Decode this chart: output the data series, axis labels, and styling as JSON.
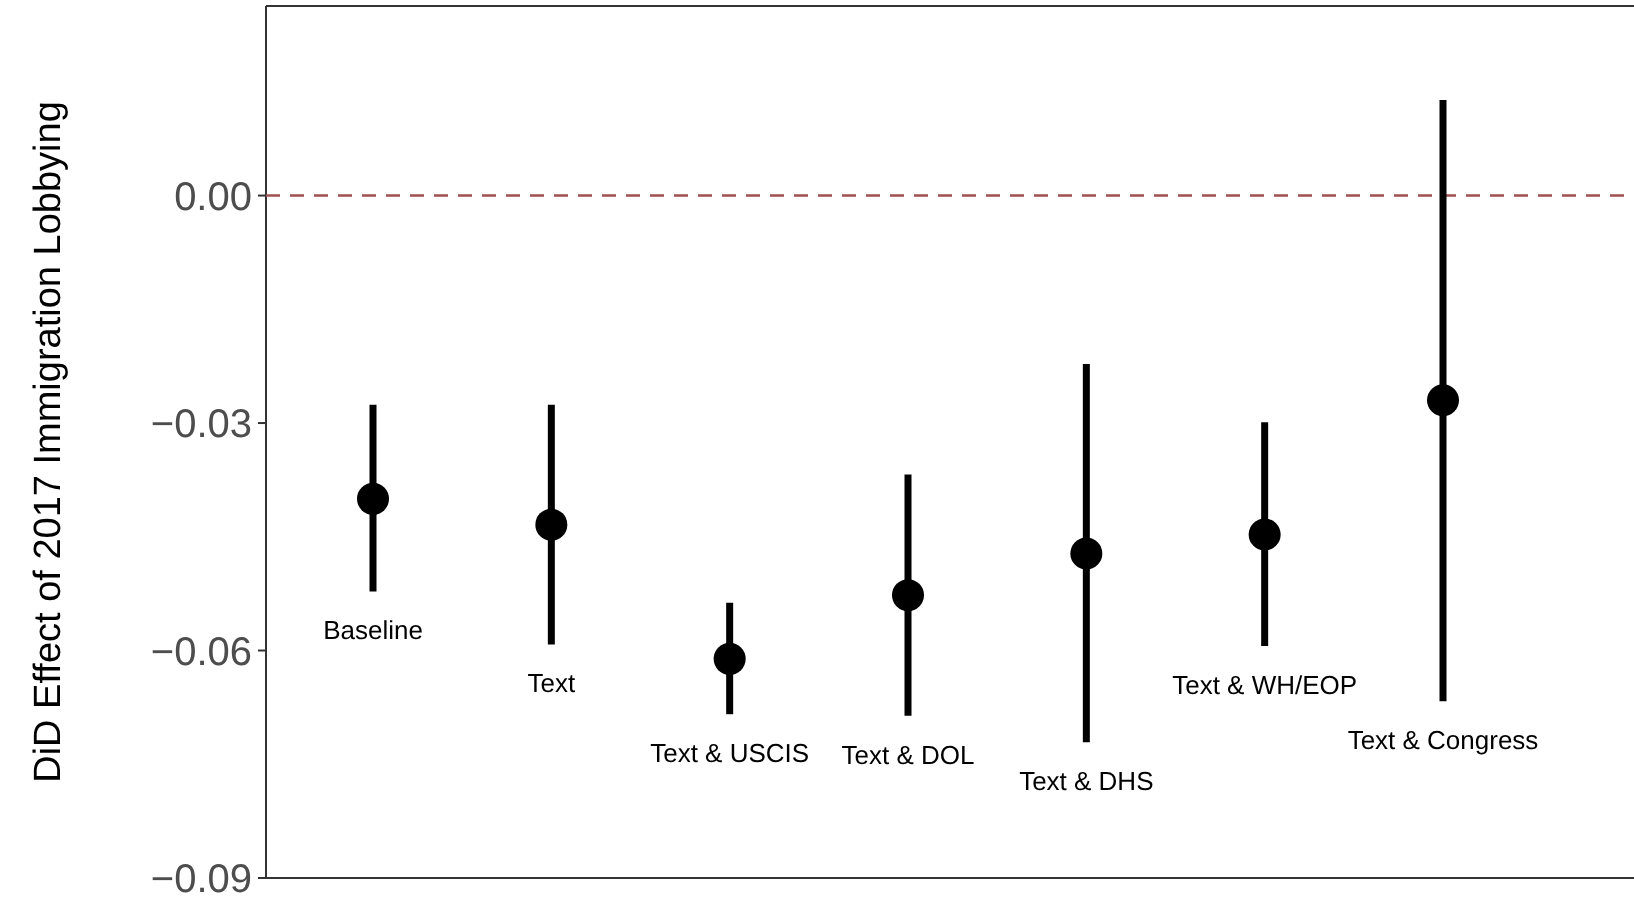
{
  "chart_data": {
    "type": "scatter",
    "ylabel": "DiD Effect of 2017 Immigration Lobbying",
    "categories": [
      "Baseline",
      "Text",
      "Text & USCIS",
      "Text & DOL",
      "Text & DHS",
      "Text & WH/EOP",
      "Text & Congress"
    ],
    "values": [
      -0.04,
      -0.0434,
      -0.0611,
      -0.0527,
      -0.0472,
      -0.0447,
      -0.027
    ],
    "errors": [
      [
        -0.0522,
        -0.0276
      ],
      [
        -0.0592,
        -0.0276
      ],
      [
        -0.0684,
        -0.0537
      ],
      [
        -0.0686,
        -0.0368
      ],
      [
        -0.0721,
        -0.0222
      ],
      [
        -0.0594,
        -0.0299
      ],
      [
        -0.0667,
        0.0126
      ]
    ],
    "color": "#000000",
    "marker": "circle",
    "ylim": [
      -0.09,
      0.025
    ],
    "yticks": [
      {
        "value": 0,
        "label": "0.00"
      },
      {
        "value": -0.03,
        "label": "−0.03"
      },
      {
        "value": -0.06,
        "label": "−0.06"
      },
      {
        "value": -0.09,
        "label": "−0.09"
      }
    ],
    "tick_labels": "y",
    "grid": false,
    "ref_lines": [
      {
        "axis": "y",
        "value": 0,
        "color": "#a0504f",
        "line_style": "dashed"
      }
    ]
  }
}
